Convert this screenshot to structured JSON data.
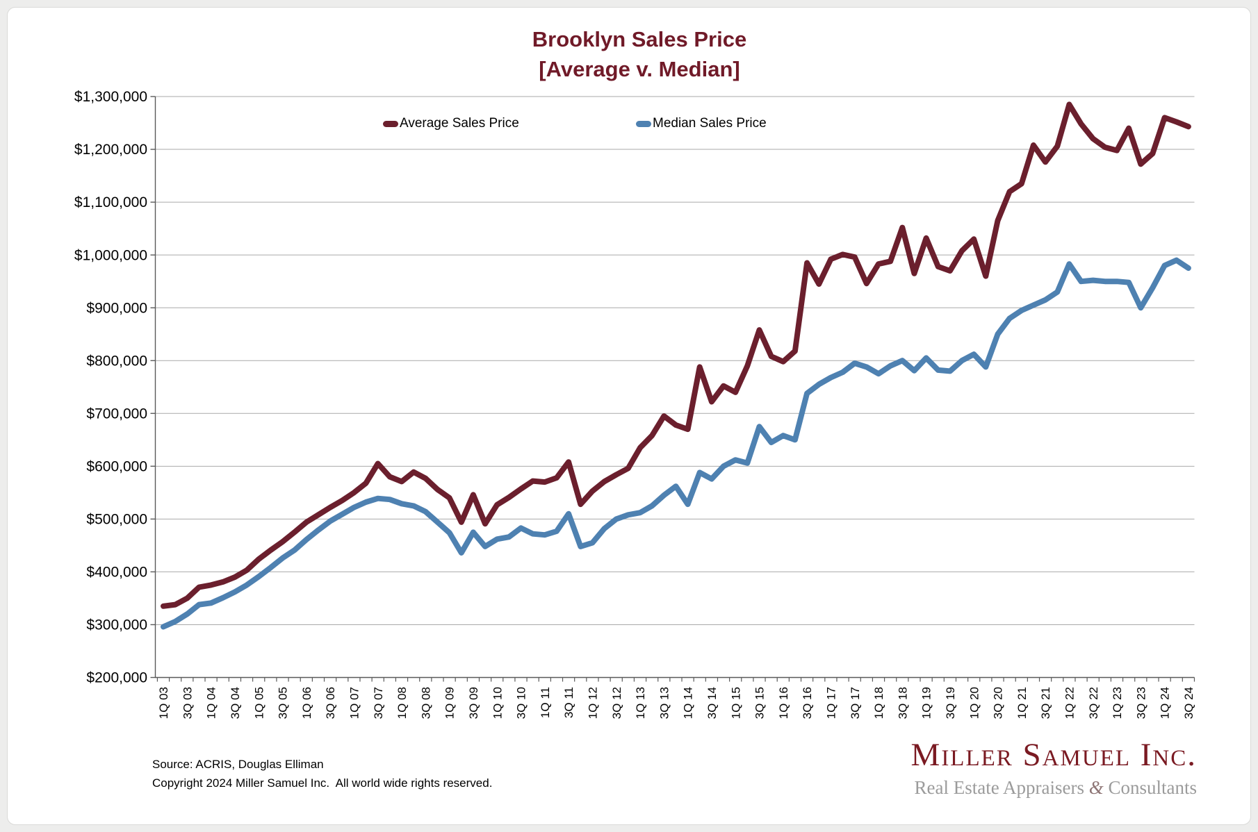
{
  "page": {
    "background": "#ededec",
    "card_background": "#ffffff"
  },
  "title": {
    "line1": "Brooklyn Sales Price",
    "line2": "[Average v. Median]",
    "color": "#701A28"
  },
  "legend": [
    {
      "label": "Average Sales Price",
      "color": "#6B1F2D"
    },
    {
      "label": "Median Sales Price",
      "color": "#4E81B1"
    }
  ],
  "footer": {
    "source_line": "Source: ACRIS, Douglas Elliman",
    "copyright_line": "Copyright 2024 Miller Samuel Inc.  All world wide rights reserved."
  },
  "logo": {
    "company": "Miller Samuel Inc.",
    "tagline_pre": "Real Estate Appraisers ",
    "tagline_amp": "&",
    "tagline_post": " Consultants",
    "color": "#7A1A22"
  },
  "chart_data": {
    "type": "line",
    "title": "Brooklyn Sales Price",
    "subtitle": "[Average v. Median]",
    "xlabel": "",
    "ylabel": "",
    "ylim": [
      200000,
      1300000
    ],
    "y_tick_interval": 100000,
    "grid": "horizontal",
    "legend_position": "top",
    "y_tick_labels": [
      "$200,000",
      "$300,000",
      "$400,000",
      "$500,000",
      "$600,000",
      "$700,000",
      "$800,000",
      "$900,000",
      "$1,000,000",
      "$1,100,000",
      "$1,200,000",
      "$1,300,000"
    ],
    "x_visible_tick_labels": [
      "1Q 03",
      "3Q 03",
      "1Q 04",
      "3Q 04",
      "1Q 05",
      "3Q 05",
      "1Q 06",
      "3Q 06",
      "1Q 07",
      "3Q 07",
      "1Q 08",
      "3Q 08",
      "1Q 09",
      "3Q 09",
      "1Q 10",
      "3Q 10",
      "1Q 11",
      "3Q 11",
      "1Q 12",
      "3Q 12",
      "1Q 13",
      "3Q 13",
      "1Q 14",
      "3Q 14",
      "1Q 15",
      "3Q 15",
      "1Q 16",
      "3Q 16",
      "1Q 17",
      "3Q 17",
      "1Q 18",
      "3Q 18",
      "1Q 19",
      "3Q 19",
      "1Q 20",
      "3Q 20",
      "1Q 21",
      "3Q 21",
      "1Q 22",
      "3Q 22",
      "1Q 23",
      "3Q 23",
      "1Q 24",
      "3Q 24"
    ],
    "categories": [
      "1Q 03",
      "2Q 03",
      "3Q 03",
      "4Q 03",
      "1Q 04",
      "2Q 04",
      "3Q 04",
      "4Q 04",
      "1Q 05",
      "2Q 05",
      "3Q 05",
      "4Q 05",
      "1Q 06",
      "2Q 06",
      "3Q 06",
      "4Q 06",
      "1Q 07",
      "2Q 07",
      "3Q 07",
      "4Q 07",
      "1Q 08",
      "2Q 08",
      "3Q 08",
      "4Q 08",
      "1Q 09",
      "2Q 09",
      "3Q 09",
      "4Q 09",
      "1Q 10",
      "2Q 10",
      "3Q 10",
      "4Q 10",
      "1Q 11",
      "2Q 11",
      "3Q 11",
      "4Q 11",
      "1Q 12",
      "2Q 12",
      "3Q 12",
      "4Q 12",
      "1Q 13",
      "2Q 13",
      "3Q 13",
      "4Q 13",
      "1Q 14",
      "2Q 14",
      "3Q 14",
      "4Q 14",
      "1Q 15",
      "2Q 15",
      "3Q 15",
      "4Q 15",
      "1Q 16",
      "2Q 16",
      "3Q 16",
      "4Q 16",
      "1Q 17",
      "2Q 17",
      "3Q 17",
      "4Q 17",
      "1Q 18",
      "2Q 18",
      "3Q 18",
      "4Q 18",
      "1Q 19",
      "2Q 19",
      "3Q 19",
      "4Q 19",
      "1Q 20",
      "2Q 20",
      "3Q 20",
      "4Q 20",
      "1Q 21",
      "2Q 21",
      "3Q 21",
      "4Q 21",
      "1Q 22",
      "2Q 22",
      "3Q 22",
      "4Q 22",
      "1Q 23",
      "2Q 23",
      "3Q 23",
      "4Q 23",
      "1Q 24",
      "2Q 24",
      "3Q 24"
    ],
    "series": [
      {
        "name": "Average Sales Price",
        "color": "#6B1F2D",
        "values": [
          335000,
          338000,
          350000,
          371000,
          375000,
          381000,
          390000,
          403000,
          424000,
          441000,
          457000,
          475000,
          494000,
          508000,
          522000,
          535000,
          550000,
          568000,
          605000,
          580000,
          571000,
          589000,
          577000,
          556000,
          540000,
          494000,
          546000,
          491000,
          527000,
          541000,
          557000,
          572000,
          570000,
          578000,
          608000,
          528000,
          553000,
          571000,
          584000,
          596000,
          635000,
          658000,
          695000,
          678000,
          670000,
          788000,
          722000,
          752000,
          740000,
          790000,
          858000,
          808000,
          798000,
          818000,
          985000,
          945000,
          992000,
          1001000,
          996000,
          946000,
          983000,
          988000,
          1052000,
          965000,
          1032000,
          978000,
          970000,
          1008000,
          1030000,
          960000,
          1065000,
          1120000,
          1135000,
          1208000,
          1176000,
          1206000,
          1285000,
          1248000,
          1220000,
          1204000,
          1198000,
          1240000,
          1172000,
          1192000,
          1260000,
          1252000,
          1243000
        ]
      },
      {
        "name": "Median Sales Price",
        "color": "#4E81B1",
        "values": [
          296000,
          306000,
          320000,
          338000,
          341000,
          351000,
          362000,
          375000,
          391000,
          408000,
          426000,
          441000,
          461000,
          479000,
          496000,
          509000,
          522000,
          532000,
          539000,
          537000,
          529000,
          525000,
          514000,
          494000,
          474000,
          436000,
          475000,
          448000,
          462000,
          466000,
          483000,
          472000,
          470000,
          477000,
          510000,
          448000,
          455000,
          482000,
          500000,
          508000,
          512000,
          525000,
          545000,
          562000,
          528000,
          588000,
          576000,
          600000,
          612000,
          606000,
          675000,
          645000,
          658000,
          650000,
          738000,
          755000,
          768000,
          778000,
          795000,
          788000,
          775000,
          790000,
          800000,
          781000,
          805000,
          782000,
          780000,
          800000,
          812000,
          788000,
          850000,
          880000,
          895000,
          905000,
          915000,
          930000,
          983000,
          950000,
          952000,
          950000,
          950000,
          948000,
          900000,
          938000,
          980000,
          990000,
          975000
        ]
      }
    ]
  }
}
